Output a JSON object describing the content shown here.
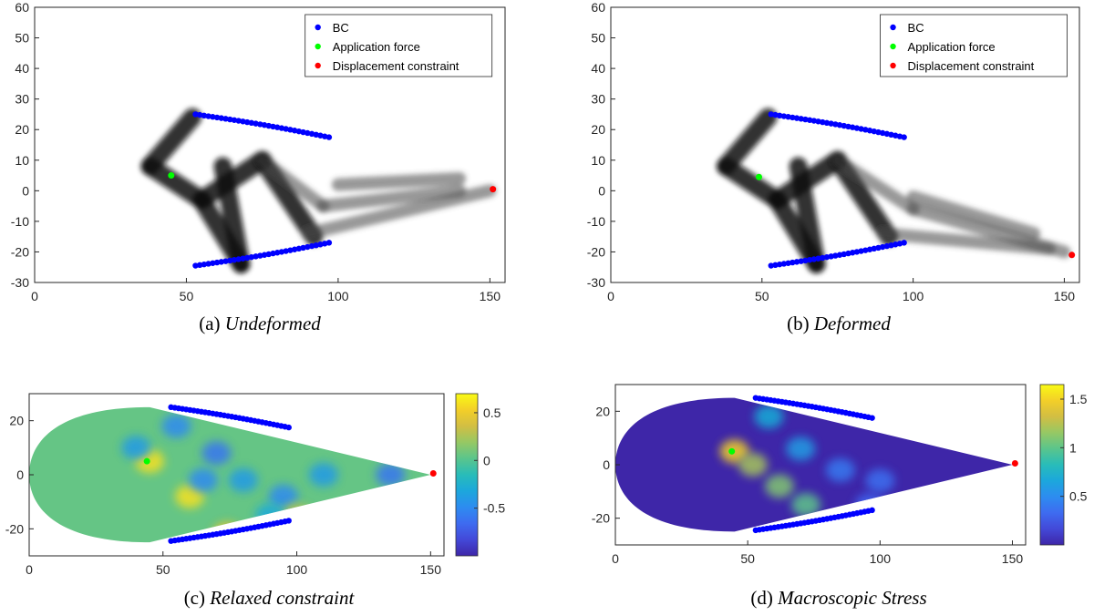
{
  "panels": [
    {
      "id": "a",
      "caption_prefix": "(a)",
      "caption_title": "Undeformed",
      "chart_data": {
        "type": "scatter",
        "kind": "density",
        "xlim": [
          0,
          155
        ],
        "ylim": [
          -30,
          60
        ],
        "xticks": [
          "0",
          "50",
          "100",
          "150"
        ],
        "yticks": [
          "-30",
          "-20",
          "-10",
          "0",
          "10",
          "20",
          "30",
          "40",
          "50",
          "60"
        ],
        "legend": {
          "position": "top-right",
          "entries": [
            {
              "name": "BC",
              "color": "#0000ff"
            },
            {
              "name": "Application force",
              "color": "#00ff00"
            },
            {
              "name": "Displacement constraint",
              "color": "#ff0000"
            }
          ]
        },
        "structure": [
          {
            "from": [
              38,
              8
            ],
            "to": [
              52,
              24
            ]
          },
          {
            "from": [
              38,
              8
            ],
            "to": [
              55,
              -3
            ]
          },
          {
            "from": [
              55,
              -3
            ],
            "to": [
              68,
              -24
            ]
          },
          {
            "from": [
              55,
              -3
            ],
            "to": [
              75,
              10
            ]
          },
          {
            "from": [
              75,
              10
            ],
            "to": [
              92,
              -15
            ]
          },
          {
            "from": [
              68,
              -24
            ],
            "to": [
              62,
              8
            ]
          },
          {
            "from": [
              75,
              10
            ],
            "to": [
              95,
              -5
            ]
          },
          {
            "from": [
              95,
              -5
            ],
            "to": [
              140,
              0
            ]
          },
          {
            "from": [
              90,
              -14
            ],
            "to": [
              150,
              0
            ]
          },
          {
            "from": [
              100,
              2
            ],
            "to": [
              140,
              4
            ]
          }
        ],
        "bc_upper": {
          "x": [
            53,
            97
          ],
          "y": [
            25,
            17.5
          ]
        },
        "bc_lower": {
          "x": [
            53,
            97
          ],
          "y": [
            -24.5,
            -17
          ]
        },
        "force_point": [
          45,
          5
        ],
        "constraint_point": [
          151,
          0.5
        ]
      }
    },
    {
      "id": "b",
      "caption_prefix": "(b)",
      "caption_title": "Deformed",
      "chart_data": {
        "type": "scatter",
        "kind": "density",
        "xlim": [
          0,
          155
        ],
        "ylim": [
          -30,
          60
        ],
        "xticks": [
          "0",
          "50",
          "100",
          "150"
        ],
        "yticks": [
          "-30",
          "-20",
          "-10",
          "0",
          "10",
          "20",
          "30",
          "40",
          "50",
          "60"
        ],
        "legend": {
          "position": "top-right",
          "entries": [
            {
              "name": "BC",
              "color": "#0000ff"
            },
            {
              "name": "Application force",
              "color": "#00ff00"
            },
            {
              "name": "Displacement constraint",
              "color": "#ff0000"
            }
          ]
        },
        "structure": [
          {
            "from": [
              38,
              8
            ],
            "to": [
              52,
              24
            ]
          },
          {
            "from": [
              38,
              8
            ],
            "to": [
              55,
              -3
            ]
          },
          {
            "from": [
              55,
              -3
            ],
            "to": [
              68,
              -24
            ]
          },
          {
            "from": [
              55,
              -3
            ],
            "to": [
              75,
              10
            ]
          },
          {
            "from": [
              75,
              10
            ],
            "to": [
              92,
              -15
            ]
          },
          {
            "from": [
              68,
              -24
            ],
            "to": [
              62,
              8
            ]
          },
          {
            "from": [
              75,
              10
            ],
            "to": [
              100,
              -6
            ]
          },
          {
            "from": [
              100,
              -6
            ],
            "to": [
              150,
              -20
            ]
          },
          {
            "from": [
              90,
              -14
            ],
            "to": [
              145,
              -19
            ]
          },
          {
            "from": [
              100,
              -2
            ],
            "to": [
              140,
              -14
            ]
          }
        ],
        "bc_upper": {
          "x": [
            53,
            97
          ],
          "y": [
            25,
            17.5
          ]
        },
        "bc_lower": {
          "x": [
            53,
            97
          ],
          "y": [
            -24.5,
            -17
          ]
        },
        "force_point": [
          49,
          4.5
        ],
        "constraint_point": [
          152.5,
          -21
        ]
      }
    },
    {
      "id": "c",
      "caption_prefix": "(c)",
      "caption_title": "Relaxed constraint",
      "chart_data": {
        "type": "heatmap",
        "colormap": "parula",
        "background_value": 0.05,
        "xlim": [
          0,
          155
        ],
        "ylim": [
          -30,
          30
        ],
        "xticks": [
          "0",
          "50",
          "100",
          "150"
        ],
        "yticks": [
          "-20",
          "0",
          "20"
        ],
        "colorbar": {
          "range": [
            -1.0,
            0.7
          ],
          "ticks": [
            "0.5",
            "0",
            "-0.5"
          ],
          "tick_values": [
            0.5,
            0,
            -0.5
          ]
        },
        "hotspots": [
          {
            "x": 45,
            "y": 5,
            "v": 0.6
          },
          {
            "x": 60,
            "y": -8,
            "v": 0.6
          },
          {
            "x": 74,
            "y": -22,
            "v": 0.5
          },
          {
            "x": 40,
            "y": 10,
            "v": -0.4
          },
          {
            "x": 55,
            "y": 18,
            "v": -0.5
          },
          {
            "x": 70,
            "y": 8,
            "v": -0.6
          },
          {
            "x": 65,
            "y": -2,
            "v": -0.5
          },
          {
            "x": 80,
            "y": -2,
            "v": -0.4
          },
          {
            "x": 95,
            "y": -8,
            "v": -0.5
          },
          {
            "x": 110,
            "y": 0,
            "v": -0.4
          },
          {
            "x": 135,
            "y": 0,
            "v": -0.6
          },
          {
            "x": 100,
            "y": -15,
            "v": 0.3
          },
          {
            "x": 90,
            "y": -15,
            "v": -0.3
          }
        ],
        "bc_upper": {
          "x": [
            53,
            97
          ],
          "y": [
            25,
            17.5
          ]
        },
        "bc_lower": {
          "x": [
            53,
            97
          ],
          "y": [
            -24.5,
            -17
          ]
        },
        "force_point": [
          44,
          5
        ],
        "constraint_point": [
          151,
          0.5
        ]
      }
    },
    {
      "id": "d",
      "caption_prefix": "(d)",
      "caption_title": "Macroscopic Stress",
      "chart_data": {
        "type": "heatmap",
        "colormap": "parula",
        "background_value": 0.0,
        "xlim": [
          0,
          155
        ],
        "ylim": [
          -30,
          30
        ],
        "xticks": [
          "0",
          "50",
          "100",
          "150"
        ],
        "yticks": [
          "-20",
          "0",
          "20"
        ],
        "colorbar": {
          "range": [
            0.0,
            1.65
          ],
          "ticks": [
            "1.5",
            "1",
            "0.5"
          ],
          "tick_values": [
            1.5,
            1.0,
            0.5
          ]
        },
        "hotspots": [
          {
            "x": 45,
            "y": 5,
            "v": 1.5
          },
          {
            "x": 52,
            "y": 0,
            "v": 1.2
          },
          {
            "x": 62,
            "y": -8,
            "v": 1.1
          },
          {
            "x": 72,
            "y": -15,
            "v": 1.0
          },
          {
            "x": 58,
            "y": 18,
            "v": 0.7
          },
          {
            "x": 70,
            "y": 6,
            "v": 0.6
          },
          {
            "x": 85,
            "y": -2,
            "v": 0.4
          },
          {
            "x": 100,
            "y": -6,
            "v": 0.35
          },
          {
            "x": 96,
            "y": -15,
            "v": 0.3
          }
        ],
        "bc_upper": {
          "x": [
            53,
            97
          ],
          "y": [
            25,
            17.5
          ]
        },
        "bc_lower": {
          "x": [
            53,
            97
          ],
          "y": [
            -24.5,
            -17
          ]
        },
        "force_point": [
          44,
          5
        ],
        "constraint_point": [
          151,
          0.5
        ]
      }
    }
  ]
}
